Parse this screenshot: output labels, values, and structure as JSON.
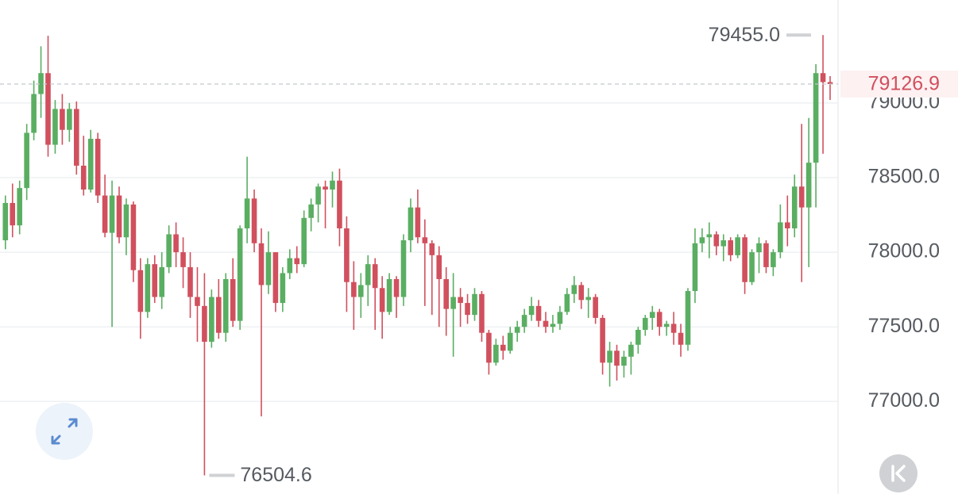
{
  "chart_data": {
    "type": "candlestick",
    "up_color": "#5aae62",
    "down_color": "#d1505e",
    "ylim": [
      76380,
      79690
    ],
    "yticks": [
      {
        "value": 77000,
        "label": "77000.0"
      },
      {
        "value": 77500,
        "label": "77500.0"
      },
      {
        "value": 78000,
        "label": "78000.0"
      },
      {
        "value": 78500,
        "label": "78500.0"
      },
      {
        "value": 79000,
        "label": "79000.0"
      }
    ],
    "grid": true,
    "max_label": {
      "value": 79455,
      "label": "79455.0"
    },
    "min_label": 76504.6,
    "last_price": 79126.9,
    "open": [
      78080,
      78330,
      78180,
      78430,
      78800,
      79060,
      79200,
      78720,
      78960,
      78820,
      78960,
      78580,
      78420,
      78760,
      78380,
      78130,
      78380,
      78100,
      78320,
      77880,
      77600,
      77920,
      77700,
      77900,
      78120,
      78000,
      77900,
      77700,
      77640,
      77400,
      77700,
      77460,
      77820,
      77540,
      78160,
      78360,
      78060,
      77780,
      78000,
      77660,
      77860,
      77960,
      77920,
      78230,
      78320,
      78440,
      78420,
      78480,
      78160,
      77800,
      77700,
      77780,
      77920,
      77760,
      77600,
      77820,
      77700,
      78080,
      78300,
      78100,
      78060,
      77980,
      77820,
      77620,
      77700,
      77660,
      77580,
      77720,
      77460,
      77260,
      77380,
      77340,
      77460,
      77500,
      77580,
      77640,
      77540,
      77500,
      77520,
      77600,
      77720,
      77780,
      77680,
      77700,
      77560,
      77260,
      77340,
      77240,
      77300,
      77380,
      77480,
      77560,
      77600,
      77500,
      77520,
      77460,
      77380,
      77740,
      78060,
      78100,
      78120,
      78040,
      78080,
      77980,
      78100,
      77800,
      78000,
      78060,
      77900,
      78000,
      78200,
      78160,
      78440,
      78300,
      78600,
      79200,
      79140
    ],
    "high": [
      78380,
      78460,
      78480,
      78860,
      79150,
      79380,
      79450,
      79020,
      79060,
      79000,
      79010,
      78780,
      78820,
      78800,
      78520,
      78480,
      78440,
      78360,
      78340,
      77960,
      77960,
      77980,
      78000,
      78180,
      78200,
      78100,
      78000,
      77900,
      77860,
      77750,
      77820,
      77860,
      77960,
      78180,
      78640,
      78420,
      78160,
      78140,
      78000,
      77900,
      78020,
      78040,
      78280,
      78360,
      78460,
      78480,
      78540,
      78560,
      78240,
      77940,
      77860,
      77980,
      77960,
      77840,
      77860,
      77840,
      78120,
      78360,
      78420,
      78220,
      78080,
      78040,
      77900,
      77860,
      77760,
      77720,
      77760,
      77740,
      77480,
      77420,
      77440,
      77500,
      77540,
      77620,
      77700,
      77680,
      77600,
      77580,
      77640,
      77760,
      77840,
      77800,
      77760,
      77720,
      77580,
      77400,
      77380,
      77340,
      77400,
      77500,
      77580,
      77640,
      77620,
      77540,
      77600,
      77520,
      77760,
      78160,
      78160,
      78200,
      78140,
      78120,
      78100,
      78120,
      78120,
      78020,
      78100,
      78080,
      78020,
      78320,
      78380,
      78520,
      78860,
      78900,
      79260,
      79455,
      79180
    ],
    "low": [
      78020,
      78100,
      78120,
      78350,
      78750,
      78900,
      78640,
      78660,
      78720,
      78740,
      78520,
      78380,
      78400,
      78330,
      78100,
      77500,
      78060,
      77980,
      77800,
      77420,
      77560,
      77660,
      77620,
      77860,
      77900,
      77760,
      77560,
      77400,
      76504.6,
      77360,
      77420,
      77400,
      77500,
      77480,
      78060,
      78000,
      76900,
      77720,
      77600,
      77600,
      77820,
      77860,
      77900,
      78140,
      78200,
      78160,
      78300,
      78040,
      77600,
      77480,
      77560,
      77640,
      77480,
      77420,
      77580,
      77560,
      77640,
      78000,
      78060,
      77640,
      77580,
      77500,
      77440,
      77300,
      77500,
      77520,
      77540,
      77400,
      77180,
      77240,
      77280,
      77320,
      77400,
      77460,
      77540,
      77500,
      77460,
      77460,
      77480,
      77580,
      77660,
      77620,
      77560,
      77520,
      77180,
      77100,
      77140,
      77160,
      77180,
      77320,
      77440,
      77480,
      77440,
      77440,
      77380,
      77300,
      77340,
      77660,
      78000,
      77960,
      77980,
      77940,
      77940,
      77960,
      77720,
      77780,
      77860,
      77860,
      77840,
      77960,
      78040,
      78100,
      77800,
      77900,
      78300,
      78660,
      79020
    ],
    "close": [
      78330,
      78180,
      78430,
      78800,
      79060,
      79200,
      78720,
      78960,
      78820,
      78960,
      78580,
      78420,
      78760,
      78380,
      78130,
      78380,
      78100,
      78320,
      77880,
      77600,
      77920,
      77700,
      77900,
      78120,
      78000,
      77900,
      77700,
      77640,
      77400,
      77700,
      77460,
      77820,
      77540,
      78160,
      78360,
      78060,
      77780,
      78000,
      77660,
      77860,
      77960,
      77920,
      78230,
      78320,
      78440,
      78420,
      78480,
      78160,
      77800,
      77700,
      77780,
      77920,
      77760,
      77600,
      77820,
      77700,
      78080,
      78300,
      78100,
      78060,
      77980,
      77820,
      77620,
      77700,
      77660,
      77580,
      77720,
      77460,
      77260,
      77380,
      77340,
      77460,
      77500,
      77580,
      77640,
      77540,
      77500,
      77520,
      77600,
      77720,
      77780,
      77680,
      77700,
      77560,
      77260,
      77340,
      77240,
      77300,
      77380,
      77480,
      77560,
      77600,
      77500,
      77520,
      77460,
      77380,
      77740,
      78060,
      78100,
      78120,
      78040,
      78080,
      77980,
      78100,
      77800,
      78000,
      78060,
      77900,
      78000,
      78200,
      78160,
      78440,
      78300,
      78600,
      79200,
      79140,
      79126.9
    ]
  }
}
